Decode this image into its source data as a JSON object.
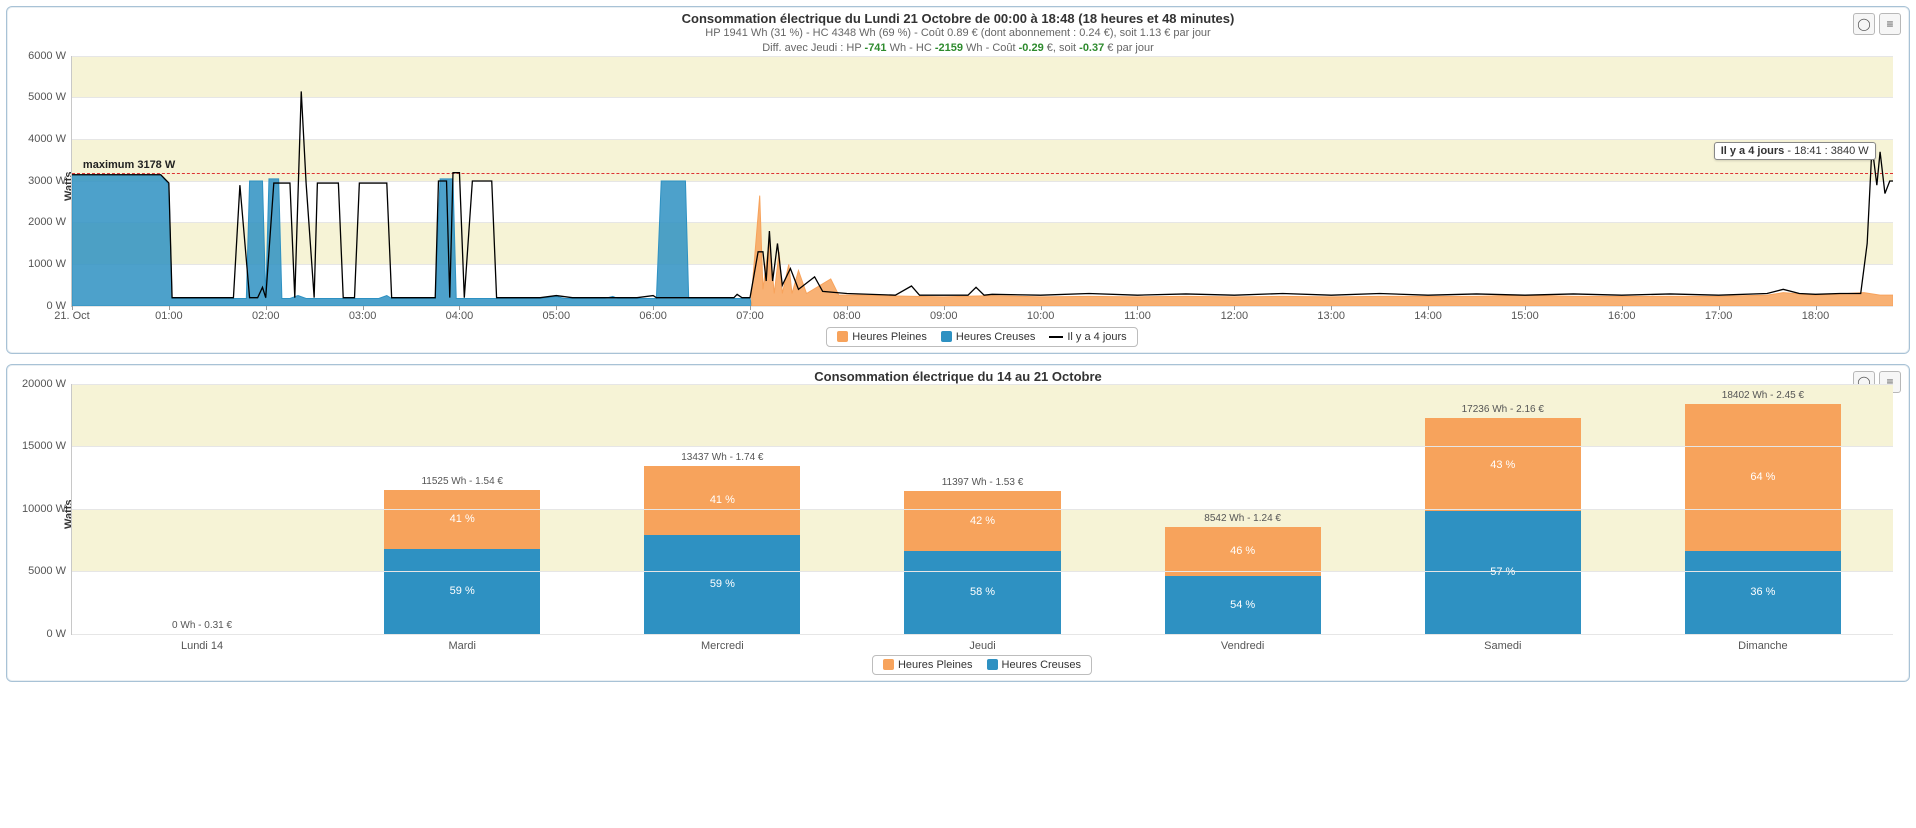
{
  "colors": {
    "hp": "#f7a35c",
    "hc": "#2e91c2",
    "prev_line": "#000000",
    "band": "#f6f3d6",
    "grid": "#e6e6e6",
    "max_line": "#d33333",
    "panel_border": "#a8c2d6"
  },
  "chart1": {
    "title": "Consommation électrique du Lundi 21 Octobre de 00:00 à 18:48 (18 heures et 48 minutes)",
    "subtitle_1": "HP 1941 Wh (31 %) - HC 4348 Wh (69 %) - Coût 0.89 € (dont abonnement : 0.24 €), soit 1.13 € par jour",
    "subtitle_2_pre": "Diff. avec Jeudi : HP ",
    "subtitle_2_hp": "-741",
    "subtitle_2_mid": " Wh - HC ",
    "subtitle_2_hc": "-2159",
    "subtitle_2_post1": " Wh - Coût ",
    "subtitle_2_cost": "-0.29",
    "subtitle_2_post2": " €, soit ",
    "subtitle_2_day": "-0.37",
    "subtitle_2_post3": " € par jour",
    "y_label": "Watts",
    "ylim": [
      0,
      6000
    ],
    "ytick_step": 1000,
    "ytick_suffix": " W",
    "x_start_min": 0,
    "x_end_min": 1128,
    "x_tick_labels": [
      "21. Oct",
      "01:00",
      "02:00",
      "03:00",
      "04:00",
      "05:00",
      "06:00",
      "07:00",
      "08:00",
      "09:00",
      "10:00",
      "11:00",
      "12:00",
      "13:00",
      "14:00",
      "15:00",
      "16:00",
      "17:00",
      "18:00"
    ],
    "max_line_value": 3178,
    "max_label": "maximum 3178 W",
    "tooltip_series": "Il y a 4 jours",
    "tooltip_text": " - 18:41 : 3840 W",
    "tooltip_at_min": 1121,
    "legend": [
      {
        "label": "Heures Pleines",
        "color": "hp",
        "type": "sw"
      },
      {
        "label": "Heures Creuses",
        "color": "hc",
        "type": "sw"
      },
      {
        "label": "Il y a 4 jours",
        "color": "prev_line",
        "type": "ln"
      }
    ],
    "series_hc": [
      [
        0,
        3150
      ],
      [
        5,
        3150
      ],
      [
        10,
        3150
      ],
      [
        55,
        3150
      ],
      [
        60,
        2900
      ],
      [
        62,
        180
      ],
      [
        108,
        180
      ],
      [
        110,
        3000
      ],
      [
        118,
        3000
      ],
      [
        120,
        180
      ],
      [
        122,
        3050
      ],
      [
        128,
        3050
      ],
      [
        130,
        180
      ],
      [
        135,
        180
      ],
      [
        140,
        250
      ],
      [
        145,
        180
      ],
      [
        190,
        180
      ],
      [
        195,
        250
      ],
      [
        198,
        180
      ],
      [
        225,
        180
      ],
      [
        228,
        3050
      ],
      [
        236,
        3050
      ],
      [
        238,
        180
      ],
      [
        290,
        180
      ],
      [
        300,
        230
      ],
      [
        305,
        180
      ],
      [
        330,
        180
      ],
      [
        335,
        230
      ],
      [
        338,
        180
      ],
      [
        362,
        180
      ],
      [
        365,
        3000
      ],
      [
        380,
        3000
      ],
      [
        382,
        180
      ],
      [
        420,
        180
      ],
      [
        421,
        0
      ]
    ],
    "series_hp": [
      [
        421,
        0
      ],
      [
        421,
        300
      ],
      [
        426,
        2650
      ],
      [
        428,
        400
      ],
      [
        432,
        1600
      ],
      [
        435,
        300
      ],
      [
        438,
        1300
      ],
      [
        440,
        300
      ],
      [
        444,
        1000
      ],
      [
        446,
        300
      ],
      [
        450,
        850
      ],
      [
        455,
        300
      ],
      [
        470,
        650
      ],
      [
        475,
        260
      ],
      [
        490,
        260
      ],
      [
        510,
        240
      ],
      [
        540,
        220
      ],
      [
        570,
        250
      ],
      [
        600,
        220
      ],
      [
        630,
        230
      ],
      [
        660,
        220
      ],
      [
        690,
        230
      ],
      [
        720,
        220
      ],
      [
        750,
        230
      ],
      [
        780,
        220
      ],
      [
        810,
        230
      ],
      [
        840,
        230
      ],
      [
        870,
        230
      ],
      [
        900,
        260
      ],
      [
        930,
        230
      ],
      [
        960,
        230
      ],
      [
        990,
        230
      ],
      [
        1020,
        230
      ],
      [
        1050,
        260
      ],
      [
        1060,
        320
      ],
      [
        1080,
        260
      ],
      [
        1110,
        320
      ],
      [
        1120,
        260
      ],
      [
        1128,
        260
      ]
    ],
    "series_prev": [
      [
        0,
        3150
      ],
      [
        55,
        3150
      ],
      [
        60,
        2950
      ],
      [
        62,
        200
      ],
      [
        100,
        200
      ],
      [
        104,
        2900
      ],
      [
        110,
        200
      ],
      [
        115,
        200
      ],
      [
        118,
        450
      ],
      [
        120,
        200
      ],
      [
        125,
        2950
      ],
      [
        135,
        2950
      ],
      [
        138,
        200
      ],
      [
        142,
        5150
      ],
      [
        145,
        2950
      ],
      [
        150,
        200
      ],
      [
        152,
        2950
      ],
      [
        165,
        2950
      ],
      [
        168,
        200
      ],
      [
        175,
        200
      ],
      [
        178,
        2950
      ],
      [
        195,
        2950
      ],
      [
        198,
        200
      ],
      [
        225,
        200
      ],
      [
        227,
        3000
      ],
      [
        232,
        3000
      ],
      [
        234,
        200
      ],
      [
        236,
        3200
      ],
      [
        240,
        3200
      ],
      [
        243,
        200
      ],
      [
        248,
        3000
      ],
      [
        260,
        3000
      ],
      [
        263,
        200
      ],
      [
        290,
        200
      ],
      [
        300,
        250
      ],
      [
        310,
        200
      ],
      [
        350,
        200
      ],
      [
        360,
        250
      ],
      [
        362,
        200
      ],
      [
        410,
        200
      ],
      [
        412,
        280
      ],
      [
        415,
        200
      ],
      [
        420,
        200
      ],
      [
        425,
        1300
      ],
      [
        428,
        1300
      ],
      [
        430,
        600
      ],
      [
        432,
        1800
      ],
      [
        434,
        600
      ],
      [
        437,
        1500
      ],
      [
        440,
        500
      ],
      [
        445,
        900
      ],
      [
        450,
        400
      ],
      [
        460,
        700
      ],
      [
        465,
        350
      ],
      [
        480,
        300
      ],
      [
        510,
        260
      ],
      [
        520,
        480
      ],
      [
        525,
        260
      ],
      [
        555,
        260
      ],
      [
        560,
        450
      ],
      [
        565,
        260
      ],
      [
        570,
        280
      ],
      [
        600,
        260
      ],
      [
        630,
        300
      ],
      [
        660,
        260
      ],
      [
        690,
        290
      ],
      [
        720,
        260
      ],
      [
        750,
        300
      ],
      [
        780,
        260
      ],
      [
        810,
        300
      ],
      [
        840,
        260
      ],
      [
        870,
        290
      ],
      [
        900,
        260
      ],
      [
        930,
        290
      ],
      [
        960,
        260
      ],
      [
        990,
        290
      ],
      [
        1020,
        260
      ],
      [
        1050,
        300
      ],
      [
        1060,
        400
      ],
      [
        1070,
        300
      ],
      [
        1080,
        280
      ],
      [
        1095,
        300
      ],
      [
        1108,
        300
      ],
      [
        1112,
        1500
      ],
      [
        1115,
        3840
      ],
      [
        1118,
        2900
      ],
      [
        1120,
        3700
      ],
      [
        1123,
        2700
      ],
      [
        1126,
        3000
      ],
      [
        1128,
        3000
      ]
    ]
  },
  "chart2": {
    "title": "Consommation électrique du 14 au 21 Octobre",
    "y_label": "Watts",
    "ylim": [
      0,
      20000
    ],
    "ytick_step": 5000,
    "ytick_suffix": " W",
    "categories": [
      "Lundi 14",
      "Mardi",
      "Mercredi",
      "Jeudi",
      "Vendredi",
      "Samedi",
      "Dimanche"
    ],
    "bars": [
      {
        "total": 0,
        "hp_pct": 0,
        "hc_pct": 0,
        "hp_lab": "",
        "hc_lab": "",
        "top_label": "0 Wh - 0.31 €"
      },
      {
        "total": 11525,
        "hp_pct": 41,
        "hc_pct": 59,
        "hp_lab": "41 %",
        "hc_lab": "59 %",
        "top_label": "11525 Wh - 1.54 €"
      },
      {
        "total": 13437,
        "hp_pct": 41,
        "hc_pct": 59,
        "hp_lab": "41 %",
        "hc_lab": "59 %",
        "top_label": "13437 Wh - 1.74 €"
      },
      {
        "total": 11397,
        "hp_pct": 42,
        "hc_pct": 58,
        "hp_lab": "42 %",
        "hc_lab": "58 %",
        "top_label": "11397 Wh - 1.53 €"
      },
      {
        "total": 8542,
        "hp_pct": 46,
        "hc_pct": 54,
        "hp_lab": "46 %",
        "hc_lab": "54 %",
        "top_label": "8542 Wh - 1.24 €"
      },
      {
        "total": 17236,
        "hp_pct": 43,
        "hc_pct": 57,
        "hp_lab": "43 %",
        "hc_lab": "57 %",
        "top_label": "17236 Wh - 2.16 €"
      },
      {
        "total": 18402,
        "hp_pct": 64,
        "hc_pct": 36,
        "hp_lab": "64 %",
        "hc_lab": "36 %",
        "top_label": "18402 Wh - 2.45 €"
      }
    ],
    "legend": [
      {
        "label": "Heures Pleines",
        "color": "hp",
        "type": "sw"
      },
      {
        "label": "Heures Creuses",
        "color": "hc",
        "type": "sw"
      }
    ]
  }
}
